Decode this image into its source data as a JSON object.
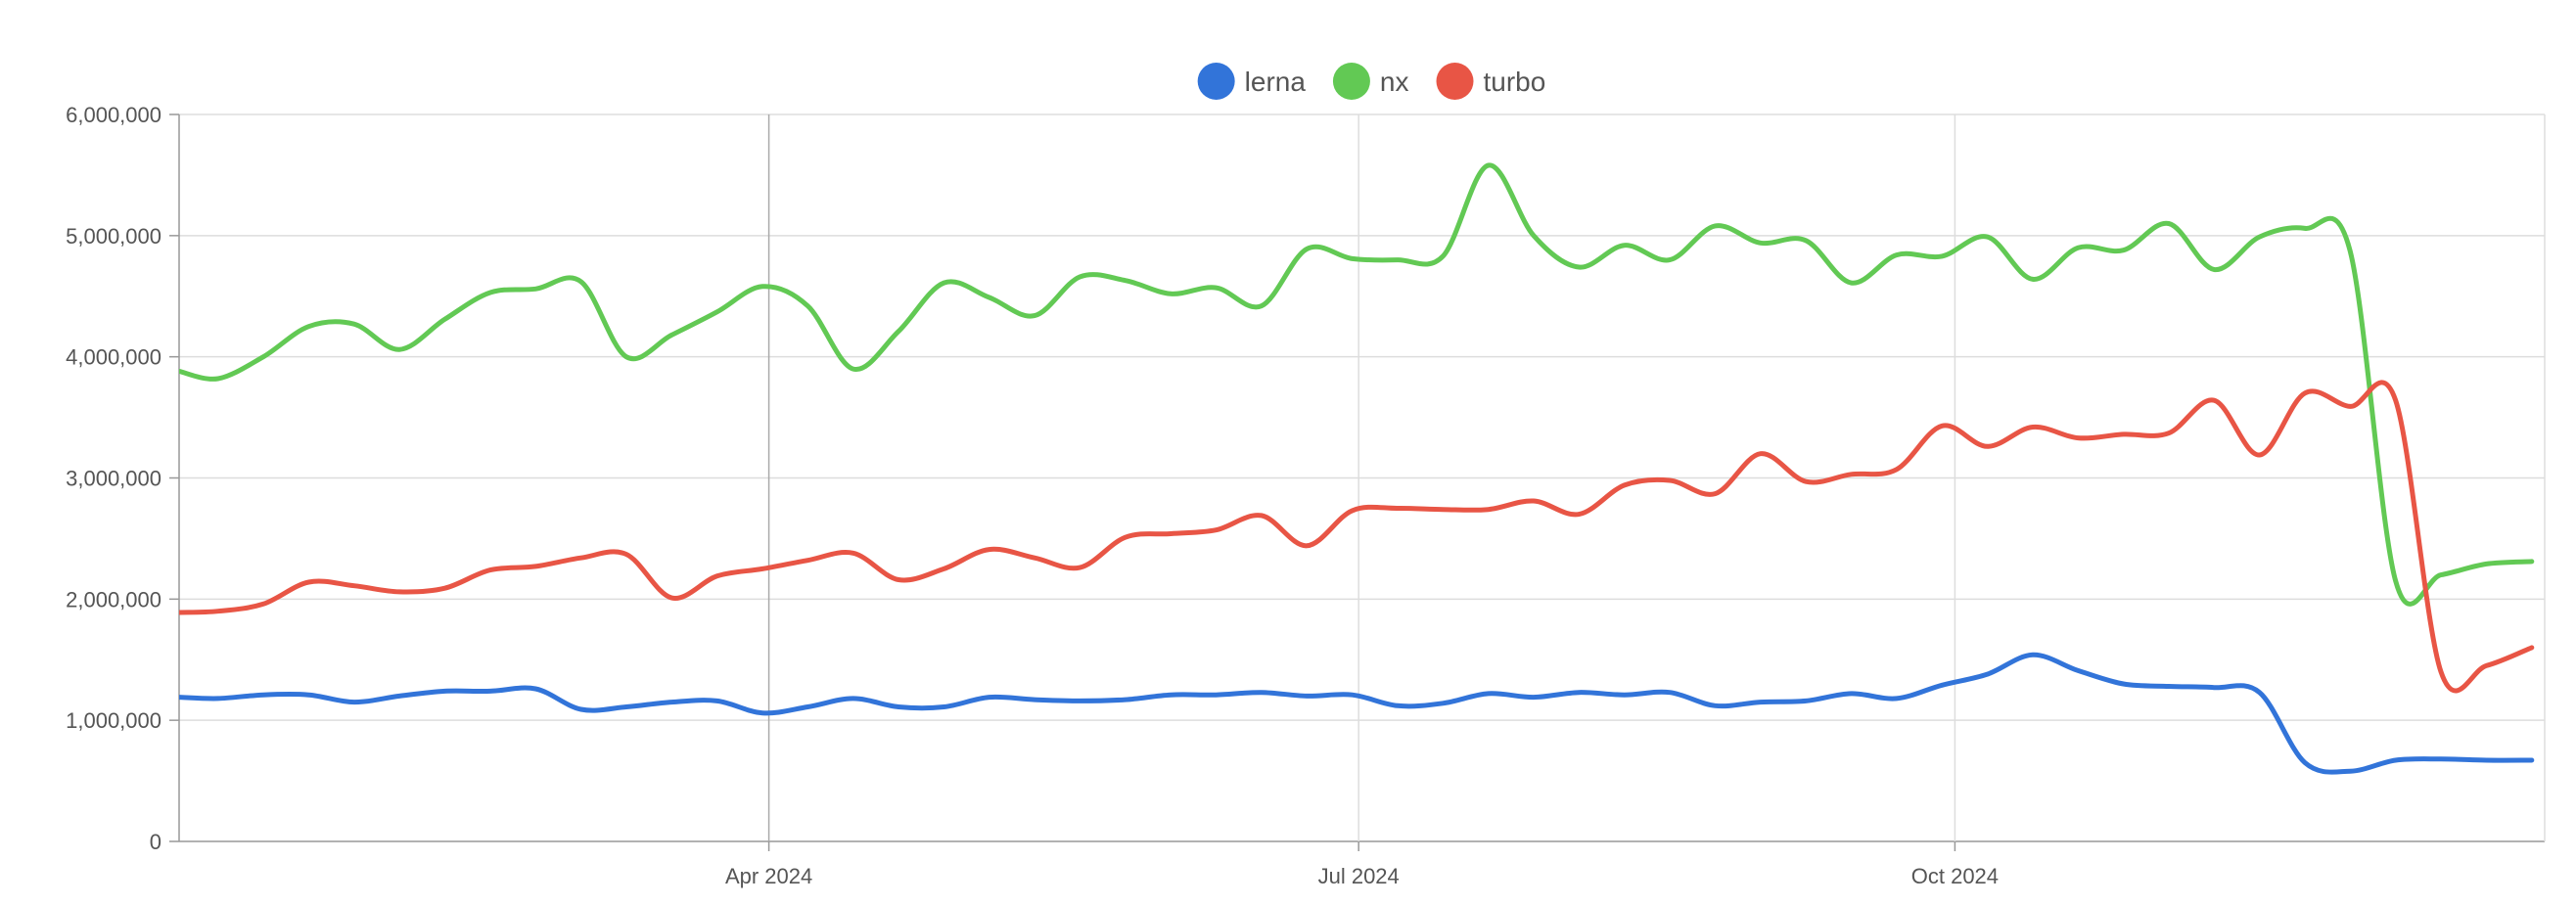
{
  "chart_data": {
    "type": "line",
    "title": "",
    "xlabel": "",
    "ylabel": "",
    "x_start": "2024-01-01",
    "x_end": "2024-12-31",
    "xlim": [
      "2024-01-01",
      "2024-12-31"
    ],
    "ylim": [
      0,
      6000000
    ],
    "y_ticks": [
      0,
      1000000,
      2000000,
      3000000,
      4000000,
      5000000,
      6000000
    ],
    "y_tick_labels": [
      "0",
      "1,000,000",
      "2,000,000",
      "3,000,000",
      "4,000,000",
      "5,000,000",
      "6,000,000"
    ],
    "x_ticks": [
      "2024-04-01",
      "2024-07-01",
      "2024-10-01"
    ],
    "x_tick_labels": [
      "Apr 2024",
      "Jul 2024",
      "Oct 2024"
    ],
    "grid": true,
    "legend_position": "top-center",
    "x": [
      "2024-01-01",
      "2024-01-07",
      "2024-01-14",
      "2024-01-21",
      "2024-01-28",
      "2024-02-04",
      "2024-02-11",
      "2024-02-18",
      "2024-02-25",
      "2024-03-03",
      "2024-03-10",
      "2024-03-17",
      "2024-03-24",
      "2024-03-31",
      "2024-04-07",
      "2024-04-14",
      "2024-04-21",
      "2024-04-28",
      "2024-05-05",
      "2024-05-12",
      "2024-05-19",
      "2024-05-26",
      "2024-06-02",
      "2024-06-09",
      "2024-06-16",
      "2024-06-23",
      "2024-06-30",
      "2024-07-07",
      "2024-07-14",
      "2024-07-21",
      "2024-07-28",
      "2024-08-04",
      "2024-08-11",
      "2024-08-18",
      "2024-08-25",
      "2024-09-01",
      "2024-09-08",
      "2024-09-15",
      "2024-09-22",
      "2024-09-29",
      "2024-10-06",
      "2024-10-13",
      "2024-10-20",
      "2024-10-27",
      "2024-11-03",
      "2024-11-10",
      "2024-11-17",
      "2024-11-24",
      "2024-12-01",
      "2024-12-08",
      "2024-12-15",
      "2024-12-22",
      "2024-12-29"
    ],
    "series": [
      {
        "name": "lerna",
        "color": "#3274d9",
        "values": [
          1190000,
          1180000,
          1210000,
          1210000,
          1150000,
          1200000,
          1240000,
          1240000,
          1260000,
          1090000,
          1110000,
          1150000,
          1160000,
          1060000,
          1110000,
          1180000,
          1110000,
          1110000,
          1190000,
          1170000,
          1160000,
          1170000,
          1210000,
          1210000,
          1230000,
          1200000,
          1210000,
          1120000,
          1140000,
          1220000,
          1190000,
          1230000,
          1210000,
          1230000,
          1120000,
          1150000,
          1160000,
          1220000,
          1180000,
          1290000,
          1380000,
          1540000,
          1410000,
          1300000,
          1280000,
          1270000,
          1230000,
          650000,
          580000,
          670000,
          680000,
          670000,
          670000
        ]
      },
      {
        "name": "nx",
        "color": "#62c954",
        "values": [
          3880000,
          3820000,
          4000000,
          4250000,
          4270000,
          4060000,
          4310000,
          4530000,
          4560000,
          4620000,
          4000000,
          4180000,
          4370000,
          4580000,
          4420000,
          3900000,
          4210000,
          4610000,
          4490000,
          4340000,
          4660000,
          4630000,
          4520000,
          4570000,
          4420000,
          4890000,
          4810000,
          4800000,
          4830000,
          5580000,
          5000000,
          4740000,
          4920000,
          4800000,
          5080000,
          4940000,
          4960000,
          4610000,
          4840000,
          4830000,
          4990000,
          4640000,
          4900000,
          4880000,
          5100000,
          4720000,
          4990000,
          5060000,
          4870000,
          2150000,
          2200000,
          2290000,
          2310000
        ]
      },
      {
        "name": "turbo",
        "color": "#e85545",
        "values": [
          1890000,
          1900000,
          1960000,
          2140000,
          2110000,
          2060000,
          2090000,
          2240000,
          2270000,
          2340000,
          2370000,
          2010000,
          2190000,
          2250000,
          2320000,
          2380000,
          2160000,
          2250000,
          2410000,
          2340000,
          2260000,
          2510000,
          2540000,
          2570000,
          2690000,
          2440000,
          2730000,
          2750000,
          2740000,
          2740000,
          2810000,
          2700000,
          2940000,
          2980000,
          2870000,
          3200000,
          2970000,
          3030000,
          3070000,
          3430000,
          3260000,
          3420000,
          3330000,
          3360000,
          3370000,
          3640000,
          3190000,
          3700000,
          3590000,
          3640000,
          1400000,
          1450000,
          1600000
        ]
      }
    ]
  }
}
